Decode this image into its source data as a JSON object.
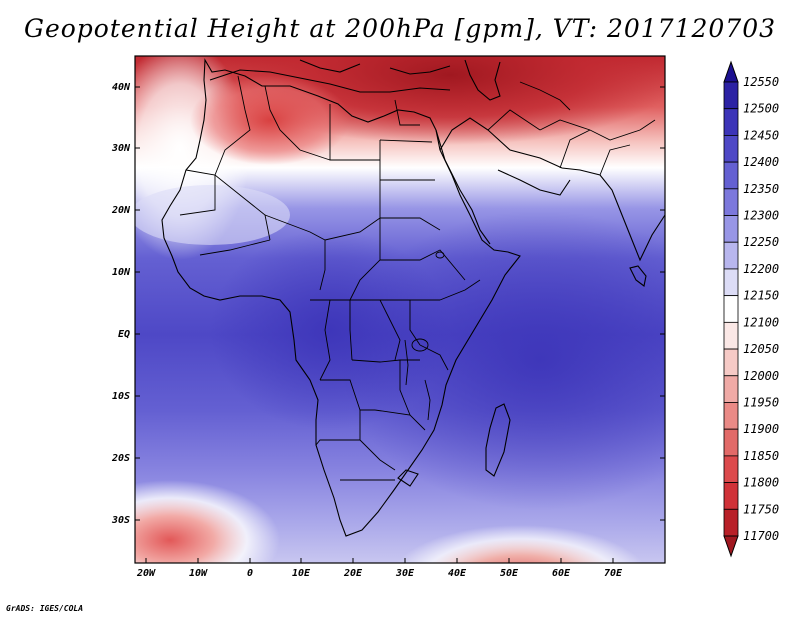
{
  "title": "Geopotential Height at 200hPa [gpm], VT: 2017120703",
  "credit": "GrADS: IGES/COLA",
  "axes": {
    "lat_ticks": [
      "40N",
      "30N",
      "20N",
      "10N",
      "EQ",
      "10S",
      "20S",
      "30S"
    ],
    "lon_ticks": [
      "20W",
      "10W",
      "0",
      "10E",
      "20E",
      "30E",
      "40E",
      "50E",
      "60E",
      "70E"
    ]
  },
  "colorbar": {
    "levels": [
      11700,
      11750,
      11800,
      11850,
      11900,
      11950,
      12000,
      12050,
      12100,
      12150,
      12200,
      12250,
      12300,
      12350,
      12400,
      12450,
      12500,
      12550
    ],
    "labels": [
      "11700",
      "11750",
      "11800",
      "11850",
      "11900",
      "11950",
      "12000",
      "12050",
      "12100",
      "12150",
      "12200",
      "12250",
      "12300",
      "12350",
      "12400",
      "12450",
      "12500",
      "12550"
    ],
    "colors": [
      "#a01820",
      "#b82028",
      "#d03238",
      "#dc4a4c",
      "#e26a68",
      "#ea8a86",
      "#f0aaa6",
      "#f6cac6",
      "#fbe8e6",
      "#ffffff",
      "#dcdcf6",
      "#b8b6ee",
      "#9896e6",
      "#7c78dc",
      "#6460d2",
      "#4e48c6",
      "#3c34b8",
      "#2c22a4",
      "#1c1090"
    ]
  },
  "chart_data": {
    "type": "heatmap",
    "title": "Geopotential Height at 200hPa [gpm], VT: 2017120703",
    "variable": "Geopotential Height",
    "level": "200hPa",
    "unit": "gpm",
    "valid_time": "2017120703",
    "lon_range": [
      -22,
      80
    ],
    "lat_range": [
      -37,
      45
    ],
    "color_range": [
      11700,
      12550
    ],
    "pattern": "Low heights (11700-11850) over the Mediterranean and Black Sea near 40N, rising southward through a 12100-12150 band near 25N to a maximum (12450-12500) over central Africa and the Indian Ocean; heights fall again to 12000-12100 near 35S southwest of Africa and southeast of Madagascar."
  }
}
